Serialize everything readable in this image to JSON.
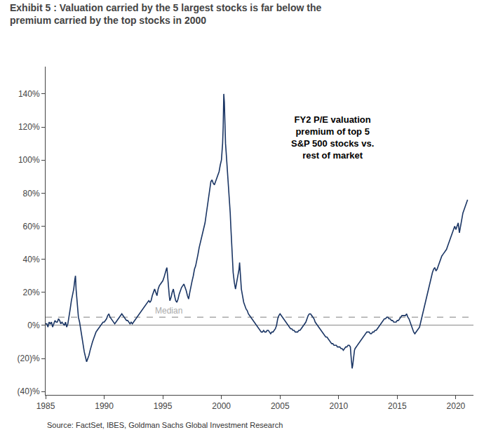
{
  "chart_data": {
    "type": "line",
    "title": "Exhibit 5 : Valuation carried by the 5 largest stocks is far below the\npremium carried by the top stocks in 2000",
    "annotation": "FY2 P/E valuation\npremium of top 5\nS&P 500 stocks vs.\nrest of market",
    "source": "Source: FactSet, IBES, Goldman Sachs Global Investment Research",
    "color": "#1a3564",
    "grid": false,
    "reference_lines": [
      {
        "value": 0.05,
        "label": "Median",
        "color": "#aaaaaa",
        "line_style": "dashed"
      }
    ],
    "xlim": [
      1985,
      2021.5
    ],
    "xticks": [
      1985,
      1990,
      1995,
      2000,
      2005,
      2010,
      2015,
      2020
    ],
    "ylim": [
      -0.42,
      1.565
    ],
    "yticks": [
      {
        "value": -0.4,
        "label": "(40)%"
      },
      {
        "value": -0.2,
        "label": "(20)%"
      },
      {
        "value": 0,
        "label": "0%"
      },
      {
        "value": 0.2,
        "label": "20%"
      },
      {
        "value": 0.4,
        "label": "40%"
      },
      {
        "value": 0.6,
        "label": "60%"
      },
      {
        "value": 0.8,
        "label": "80%"
      },
      {
        "value": 1.0,
        "label": "100%"
      },
      {
        "value": 1.2,
        "label": "120%"
      },
      {
        "value": 1.4,
        "label": "140%"
      }
    ],
    "x": [
      1985.0,
      1985.1,
      1985.2,
      1985.3,
      1985.4,
      1985.5,
      1985.6,
      1985.7,
      1985.8,
      1985.9,
      1986.0,
      1986.1,
      1986.2,
      1986.3,
      1986.4,
      1986.5,
      1986.6,
      1986.7,
      1986.8,
      1986.9,
      1987.0,
      1987.1,
      1987.2,
      1987.3,
      1987.4,
      1987.5,
      1987.55,
      1987.6,
      1987.65,
      1987.7,
      1987.75,
      1987.8,
      1987.9,
      1988.0,
      1988.1,
      1988.2,
      1988.3,
      1988.4,
      1988.5,
      1988.6,
      1988.7,
      1988.8,
      1988.9,
      1989.0,
      1989.1,
      1989.2,
      1989.3,
      1989.4,
      1989.5,
      1989.6,
      1989.7,
      1989.8,
      1989.9,
      1990.0,
      1990.1,
      1990.2,
      1990.3,
      1990.4,
      1990.5,
      1990.6,
      1990.7,
      1990.8,
      1990.9,
      1991.0,
      1991.1,
      1991.2,
      1991.3,
      1991.4,
      1991.5,
      1991.6,
      1991.7,
      1991.8,
      1991.9,
      1992.0,
      1992.1,
      1992.2,
      1992.3,
      1992.4,
      1992.5,
      1992.6,
      1992.7,
      1992.8,
      1992.9,
      1993.0,
      1993.1,
      1993.2,
      1993.3,
      1993.4,
      1993.5,
      1993.6,
      1993.7,
      1993.8,
      1993.9,
      1994.0,
      1994.1,
      1994.2,
      1994.3,
      1994.4,
      1994.5,
      1994.6,
      1994.7,
      1994.8,
      1994.9,
      1995.0,
      1995.1,
      1995.2,
      1995.3,
      1995.35,
      1995.4,
      1995.45,
      1995.5,
      1995.55,
      1995.6,
      1995.7,
      1995.8,
      1995.9,
      1996.0,
      1996.1,
      1996.2,
      1996.3,
      1996.4,
      1996.5,
      1996.6,
      1996.7,
      1996.8,
      1996.9,
      1997.0,
      1997.1,
      1997.2,
      1997.3,
      1997.4,
      1997.5,
      1997.6,
      1997.7,
      1997.8,
      1997.9,
      1998.0,
      1998.1,
      1998.2,
      1998.3,
      1998.4,
      1998.5,
      1998.6,
      1998.7,
      1998.8,
      1998.9,
      1999.0,
      1999.1,
      1999.2,
      1999.3,
      1999.4,
      1999.5,
      1999.6,
      1999.7,
      1999.8,
      1999.9,
      2000.0,
      2000.05,
      2000.1,
      2000.15,
      2000.2,
      2000.22,
      2000.25,
      2000.28,
      2000.3,
      2000.35,
      2000.4,
      2000.45,
      2000.5,
      2000.55,
      2000.6,
      2000.65,
      2000.7,
      2000.75,
      2000.8,
      2000.85,
      2000.9,
      2000.95,
      2001.0,
      2001.1,
      2001.2,
      2001.3,
      2001.4,
      2001.5,
      2001.55,
      2001.6,
      2001.65,
      2001.7,
      2001.8,
      2001.9,
      2002.0,
      2002.1,
      2002.2,
      2002.3,
      2002.4,
      2002.5,
      2002.6,
      2002.7,
      2002.8,
      2002.9,
      2003.0,
      2003.1,
      2003.2,
      2003.3,
      2003.4,
      2003.5,
      2003.6,
      2003.7,
      2003.8,
      2003.9,
      2004.0,
      2004.1,
      2004.2,
      2004.3,
      2004.4,
      2004.5,
      2004.6,
      2004.7,
      2004.8,
      2004.9,
      2005.0,
      2005.1,
      2005.2,
      2005.3,
      2005.4,
      2005.5,
      2005.6,
      2005.7,
      2005.8,
      2005.9,
      2006.0,
      2006.1,
      2006.2,
      2006.3,
      2006.4,
      2006.5,
      2006.6,
      2006.7,
      2006.8,
      2006.9,
      2007.0,
      2007.1,
      2007.2,
      2007.3,
      2007.4,
      2007.5,
      2007.6,
      2007.7,
      2007.8,
      2007.9,
      2008.0,
      2008.1,
      2008.2,
      2008.3,
      2008.4,
      2008.5,
      2008.6,
      2008.7,
      2008.8,
      2008.9,
      2009.0,
      2009.1,
      2009.2,
      2009.3,
      2009.4,
      2009.5,
      2009.6,
      2009.7,
      2009.8,
      2009.9,
      2010.0,
      2010.1,
      2010.2,
      2010.3,
      2010.4,
      2010.5,
      2010.6,
      2010.7,
      2010.8,
      2010.9,
      2011.0,
      2011.05,
      2011.1,
      2011.15,
      2011.2,
      2011.25,
      2011.3,
      2011.35,
      2011.4,
      2011.5,
      2011.6,
      2011.7,
      2011.8,
      2011.9,
      2012.0,
      2012.1,
      2012.2,
      2012.3,
      2012.4,
      2012.5,
      2012.6,
      2012.7,
      2012.8,
      2012.9,
      2013.0,
      2013.1,
      2013.2,
      2013.3,
      2013.4,
      2013.5,
      2013.6,
      2013.7,
      2013.8,
      2013.9,
      2014.0,
      2014.1,
      2014.2,
      2014.3,
      2014.4,
      2014.5,
      2014.6,
      2014.7,
      2014.8,
      2014.9,
      2015.0,
      2015.1,
      2015.2,
      2015.3,
      2015.4,
      2015.5,
      2015.6,
      2015.7,
      2015.8,
      2015.9,
      2016.0,
      2016.1,
      2016.2,
      2016.3,
      2016.4,
      2016.5,
      2016.6,
      2016.7,
      2016.8,
      2016.9,
      2017.0,
      2017.1,
      2017.2,
      2017.3,
      2017.4,
      2017.5,
      2017.6,
      2017.7,
      2017.8,
      2017.9,
      2018.0,
      2018.1,
      2018.2,
      2018.3,
      2018.4,
      2018.5,
      2018.6,
      2018.7,
      2018.8,
      2018.9,
      2019.0,
      2019.1,
      2019.2,
      2019.3,
      2019.4,
      2019.5,
      2019.6,
      2019.7,
      2019.8,
      2019.9,
      2020.0,
      2020.1,
      2020.2,
      2020.3,
      2020.4,
      2020.5,
      2020.6,
      2020.7,
      2020.8,
      2020.9,
      2021.0
    ],
    "values": [
      0.01,
      0.01,
      -0.01,
      0.02,
      0.01,
      0.02,
      -0.01,
      0.01,
      0.03,
      0.02,
      0.02,
      0.04,
      0.03,
      0.01,
      0.02,
      0.01,
      0.0,
      0.02,
      -0.01,
      0.01,
      0.05,
      0.1,
      0.15,
      0.18,
      0.22,
      0.28,
      0.3,
      0.22,
      0.18,
      0.12,
      0.08,
      0.05,
      0.02,
      -0.03,
      -0.08,
      -0.12,
      -0.16,
      -0.19,
      -0.22,
      -0.2,
      -0.18,
      -0.15,
      -0.12,
      -0.1,
      -0.08,
      -0.06,
      -0.04,
      -0.03,
      -0.02,
      -0.01,
      0.0,
      0.01,
      0.02,
      0.02,
      0.03,
      0.04,
      0.06,
      0.07,
      0.05,
      0.04,
      0.03,
      0.02,
      0.01,
      0.02,
      0.03,
      0.04,
      0.05,
      0.06,
      0.07,
      0.06,
      0.05,
      0.04,
      0.03,
      0.03,
      0.02,
      0.01,
      0.02,
      0.01,
      0.02,
      0.03,
      0.04,
      0.05,
      0.06,
      0.07,
      0.08,
      0.09,
      0.1,
      0.11,
      0.12,
      0.13,
      0.14,
      0.15,
      0.14,
      0.15,
      0.18,
      0.2,
      0.22,
      0.2,
      0.18,
      0.22,
      0.24,
      0.25,
      0.26,
      0.27,
      0.29,
      0.32,
      0.34,
      0.35,
      0.3,
      0.26,
      0.22,
      0.18,
      0.15,
      0.17,
      0.2,
      0.22,
      0.18,
      0.15,
      0.14,
      0.16,
      0.19,
      0.21,
      0.23,
      0.24,
      0.25,
      0.23,
      0.21,
      0.18,
      0.16,
      0.2,
      0.24,
      0.27,
      0.3,
      0.34,
      0.36,
      0.39,
      0.43,
      0.47,
      0.5,
      0.53,
      0.56,
      0.6,
      0.62,
      0.67,
      0.72,
      0.78,
      0.84,
      0.87,
      0.88,
      0.86,
      0.85,
      0.87,
      0.89,
      0.91,
      0.93,
      0.97,
      1.0,
      1.05,
      1.1,
      1.2,
      1.4,
      1.38,
      1.35,
      1.25,
      1.18,
      1.1,
      1.05,
      1.0,
      0.95,
      0.9,
      0.85,
      0.8,
      0.75,
      0.68,
      0.6,
      0.52,
      0.45,
      0.38,
      0.32,
      0.26,
      0.22,
      0.26,
      0.3,
      0.34,
      0.38,
      0.32,
      0.26,
      0.22,
      0.18,
      0.14,
      0.12,
      0.1,
      0.09,
      0.07,
      0.06,
      0.05,
      0.04,
      0.03,
      0.02,
      0.01,
      0.0,
      -0.01,
      -0.02,
      -0.03,
      -0.04,
      -0.04,
      -0.03,
      -0.04,
      -0.04,
      -0.03,
      -0.03,
      -0.04,
      -0.05,
      -0.04,
      -0.04,
      -0.03,
      -0.02,
      0.0,
      0.04,
      0.06,
      0.07,
      0.06,
      0.05,
      0.04,
      0.03,
      0.02,
      0.01,
      0.0,
      -0.01,
      -0.02,
      -0.02,
      -0.03,
      -0.03,
      -0.04,
      -0.04,
      -0.04,
      -0.03,
      -0.03,
      -0.02,
      -0.01,
      0.0,
      0.01,
      0.02,
      0.04,
      0.06,
      0.07,
      0.07,
      0.06,
      0.05,
      0.04,
      0.02,
      0.01,
      0.0,
      -0.01,
      -0.02,
      -0.03,
      -0.04,
      -0.05,
      -0.06,
      -0.07,
      -0.07,
      -0.08,
      -0.09,
      -0.1,
      -0.11,
      -0.11,
      -0.12,
      -0.12,
      -0.12,
      -0.13,
      -0.13,
      -0.13,
      -0.14,
      -0.14,
      -0.15,
      -0.14,
      -0.13,
      -0.13,
      -0.12,
      -0.12,
      -0.13,
      -0.18,
      -0.22,
      -0.26,
      -0.24,
      -0.2,
      -0.18,
      -0.15,
      -0.14,
      -0.13,
      -0.12,
      -0.11,
      -0.1,
      -0.09,
      -0.08,
      -0.07,
      -0.06,
      -0.05,
      -0.04,
      -0.04,
      -0.04,
      -0.05,
      -0.05,
      -0.04,
      -0.04,
      -0.03,
      -0.03,
      -0.02,
      -0.01,
      0.0,
      0.01,
      0.02,
      0.03,
      0.04,
      0.04,
      0.05,
      0.05,
      0.04,
      0.04,
      0.03,
      0.03,
      0.02,
      0.02,
      0.02,
      0.03,
      0.03,
      0.04,
      0.05,
      0.06,
      0.06,
      0.06,
      0.06,
      0.07,
      0.05,
      0.04,
      0.02,
      0.0,
      -0.02,
      -0.04,
      -0.05,
      -0.04,
      -0.03,
      -0.02,
      -0.01,
      0.02,
      0.05,
      0.08,
      0.12,
      0.15,
      0.18,
      0.21,
      0.24,
      0.27,
      0.3,
      0.32,
      0.34,
      0.35,
      0.33,
      0.34,
      0.36,
      0.38,
      0.4,
      0.42,
      0.43,
      0.44,
      0.45,
      0.46,
      0.48,
      0.5,
      0.52,
      0.54,
      0.56,
      0.58,
      0.6,
      0.58,
      0.6,
      0.62,
      0.56,
      0.6,
      0.65,
      0.68,
      0.7,
      0.72,
      0.74,
      0.76
    ]
  }
}
